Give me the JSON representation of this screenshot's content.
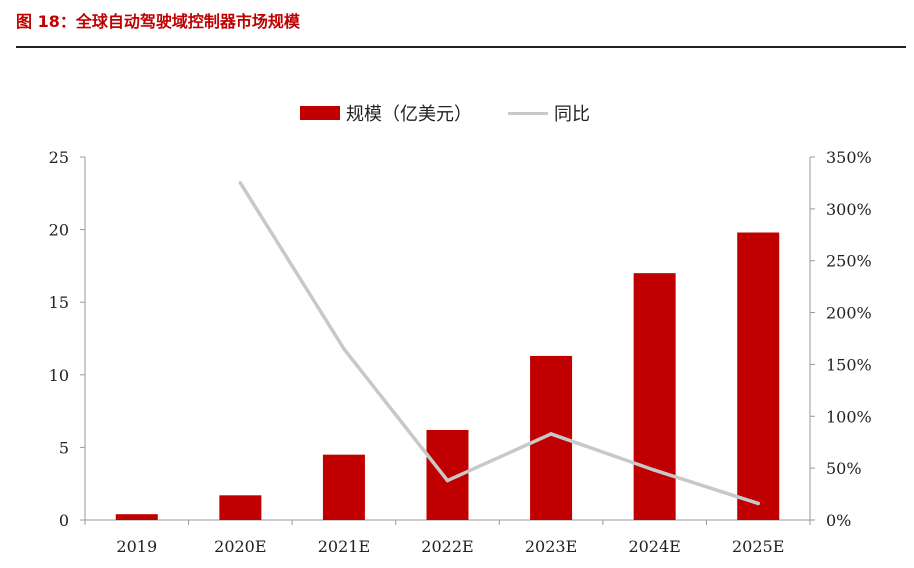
{
  "figure_title": "图 18：全球自动驾驶域控制器市场规模",
  "chart_data": {
    "type": "bar",
    "categories": [
      "2019",
      "2020E",
      "2021E",
      "2022E",
      "2023E",
      "2024E",
      "2025E"
    ],
    "series": [
      {
        "name": "规模（亿美元）",
        "type": "bar",
        "axis": "left",
        "values": [
          0.4,
          1.7,
          4.5,
          6.2,
          11.3,
          17.0,
          19.8
        ]
      },
      {
        "name": "同比",
        "type": "line",
        "axis": "right",
        "values": [
          null,
          3.25,
          1.65,
          0.38,
          0.83,
          0.48,
          0.16
        ]
      }
    ],
    "y_left": {
      "min": 0,
      "max": 25,
      "ticks": [
        0,
        5,
        10,
        15,
        20,
        25
      ],
      "tick_labels": [
        "0",
        "5",
        "10",
        "15",
        "20",
        "25"
      ]
    },
    "y_right": {
      "min": 0,
      "max": 3.5,
      "ticks": [
        0,
        0.5,
        1.0,
        1.5,
        2.0,
        2.5,
        3.0,
        3.5
      ],
      "tick_labels": [
        "0%",
        "50%",
        "100%",
        "150%",
        "200%",
        "250%",
        "300%",
        "350%"
      ]
    },
    "legend_position": "top-center",
    "grid": false,
    "colors": {
      "bar": "#c00000",
      "line": "#c8c8c8",
      "axis": "#999999",
      "title": "#c00000"
    }
  }
}
